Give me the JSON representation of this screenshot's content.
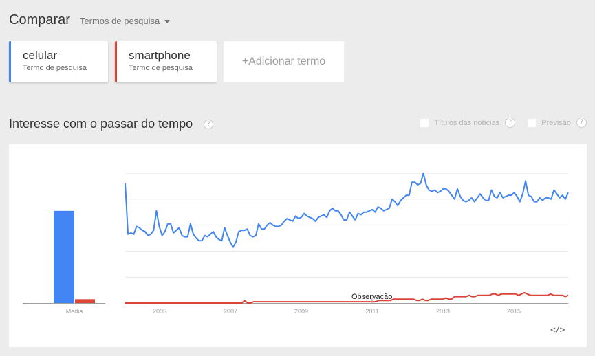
{
  "header": {
    "title": "Comparar",
    "dropdown_label": "Termos de pesquisa"
  },
  "terms": [
    {
      "name": "celular",
      "subtitle": "Termo de pesquisa",
      "color": "#4285f4"
    },
    {
      "name": "smartphone",
      "subtitle": "Termo de pesquisa",
      "color": "#db4437"
    }
  ],
  "add_term": {
    "label": "+Adicionar termo"
  },
  "section": {
    "title": "Interesse com o passar do tempo",
    "help": "?",
    "options": [
      {
        "label": "Títulos das notícias",
        "checked": false
      },
      {
        "label": "Previsão",
        "checked": false
      }
    ]
  },
  "embed_icon": "</>",
  "chart_data": [
    {
      "type": "bar",
      "title": "Média",
      "categories": [
        "Média"
      ],
      "series": [
        {
          "name": "celular",
          "values": [
            71
          ],
          "color": "#4285f4"
        },
        {
          "name": "smartphone",
          "values": [
            3
          ],
          "color": "#db4437"
        }
      ],
      "xlabel": "Média",
      "ylim": [
        0,
        100
      ]
    },
    {
      "type": "line",
      "title": "Interesse com o passar do tempo",
      "x_start": "2004-01",
      "x_step": "month",
      "x_ticks": [
        "2005",
        "2007",
        "2009",
        "2011",
        "2013",
        "2015"
      ],
      "ylim": [
        0,
        100
      ],
      "grid": true,
      "gridlines": [
        20,
        40,
        60,
        80,
        100
      ],
      "annotation": "Observação",
      "series": [
        {
          "name": "celular",
          "color": "#4285f4",
          "values": [
            92,
            53,
            54,
            53,
            59,
            58,
            56,
            55,
            52,
            53,
            56,
            71,
            59,
            52,
            55,
            61,
            61,
            54,
            56,
            58,
            52,
            51,
            51,
            61,
            53,
            50,
            48,
            48,
            52,
            51,
            53,
            55,
            51,
            49,
            48,
            58,
            52,
            47,
            43,
            47,
            55,
            56,
            56,
            57,
            52,
            51,
            52,
            61,
            57,
            57,
            60,
            62,
            60,
            59,
            59,
            60,
            63,
            65,
            64,
            63,
            67,
            65,
            66,
            69,
            67,
            66,
            65,
            63,
            66,
            67,
            68,
            66,
            71,
            73,
            71,
            71,
            68,
            64,
            64,
            70,
            67,
            64,
            69,
            68,
            70,
            70,
            71,
            72,
            70,
            74,
            73,
            71,
            72,
            73,
            80,
            78,
            75,
            79,
            81,
            83,
            83,
            93,
            93,
            91,
            92,
            100,
            91,
            87,
            86,
            87,
            85,
            86,
            88,
            88,
            86,
            83,
            80,
            88,
            82,
            79,
            78,
            79,
            81,
            78,
            81,
            84,
            81,
            79,
            79,
            87,
            82,
            81,
            85,
            81,
            82,
            83,
            83,
            85,
            82,
            78,
            84,
            94,
            83,
            82,
            78,
            78,
            81,
            79,
            81,
            81,
            80,
            87,
            84,
            81,
            83,
            80,
            85
          ],
          "note": "approximate monthly values read from chart trace"
        },
        {
          "name": "smartphone",
          "color": "#db4437",
          "values": [
            0,
            0,
            0,
            0,
            0,
            0,
            0,
            0,
            0,
            0,
            0,
            0,
            0,
            0,
            0,
            0,
            0,
            0,
            0,
            0,
            0,
            0,
            0,
            0,
            0,
            0,
            0,
            0,
            0,
            0,
            0,
            0,
            0,
            0,
            0,
            0,
            0,
            0,
            0,
            0,
            0,
            2,
            0,
            0,
            1,
            1,
            1,
            1,
            1,
            1,
            1,
            1,
            1,
            1,
            1,
            1,
            1,
            1,
            1,
            1,
            1,
            1,
            1,
            1,
            1,
            1,
            1,
            1,
            1,
            1,
            1,
            1,
            1,
            1,
            1,
            1,
            1,
            1,
            1,
            1,
            1,
            1,
            1,
            1,
            1,
            1,
            1,
            2,
            2,
            2,
            2,
            2,
            3,
            3,
            3,
            3,
            3,
            3,
            3,
            3,
            2,
            2,
            3,
            2,
            2,
            3,
            3,
            3,
            3,
            3,
            4,
            3,
            3,
            5,
            5,
            5,
            5,
            5,
            6,
            5,
            5,
            6,
            6,
            6,
            6,
            6,
            7,
            7,
            6,
            7,
            7,
            7,
            7,
            7,
            7,
            6,
            7,
            8,
            7,
            6,
            6,
            6,
            6,
            6,
            6,
            6,
            7,
            6,
            6,
            6,
            6,
            5,
            6
          ],
          "note": "approximate monthly values read from chart trace"
        }
      ]
    }
  ]
}
